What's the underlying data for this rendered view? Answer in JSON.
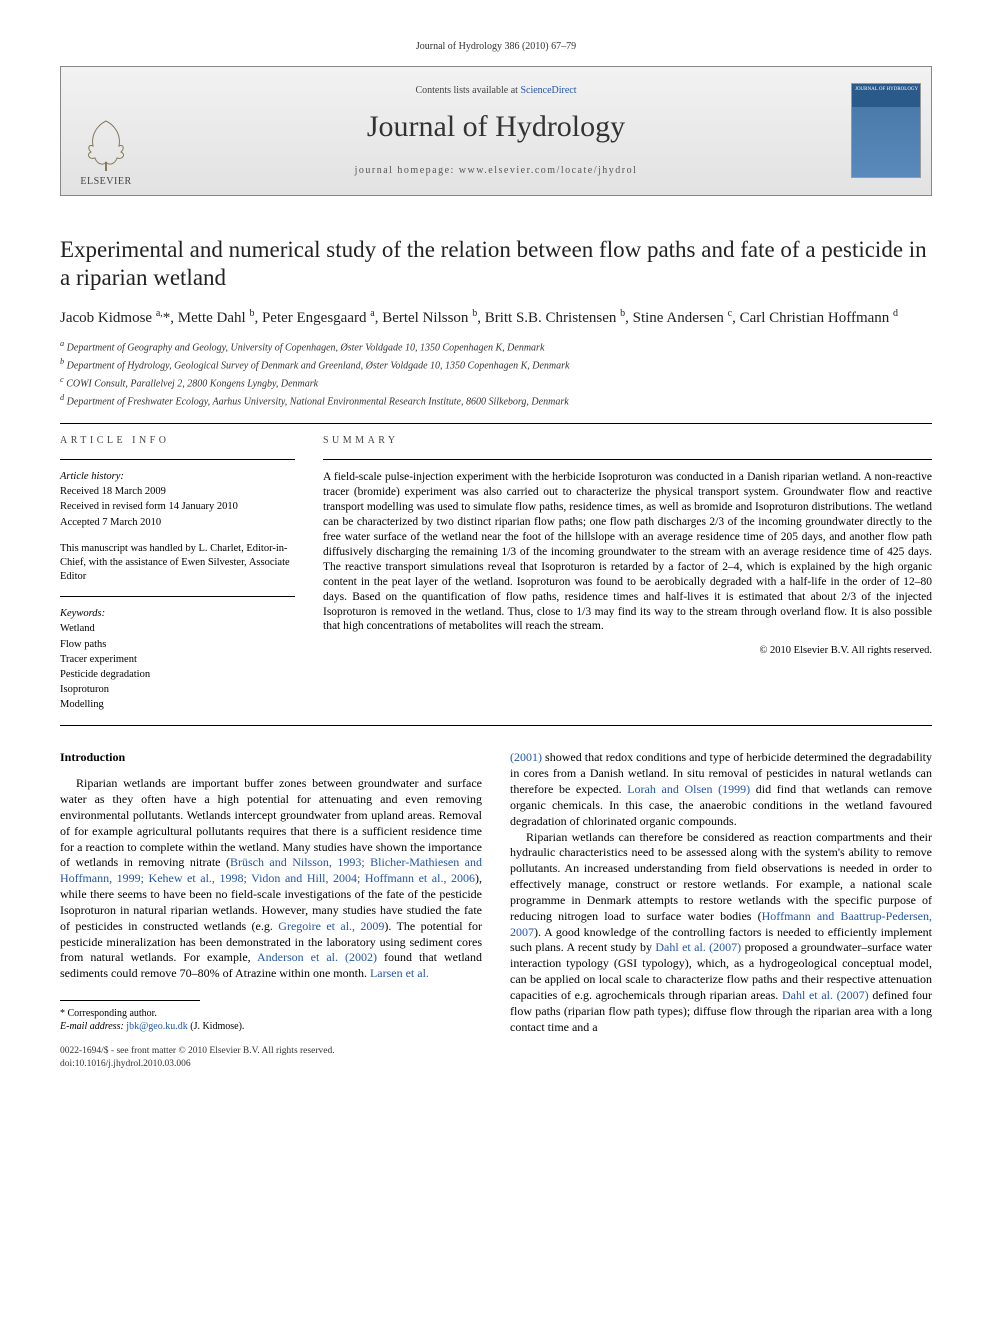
{
  "journal_ref": "Journal of Hydrology 386 (2010) 67–79",
  "banner": {
    "publisher": "ELSEVIER",
    "contents_prefix": "Contents lists available at ",
    "contents_link": "ScienceDirect",
    "journal_name": "Journal of Hydrology",
    "homepage": "journal homepage: www.elsevier.com/locate/jhydrol",
    "cover_title": "JOURNAL OF HYDROLOGY"
  },
  "title": "Experimental and numerical study of the relation between flow paths and fate of a pesticide in a riparian wetland",
  "authors_html": "Jacob Kidmose <sup>a,</sup>*, Mette Dahl <sup>b</sup>, Peter Engesgaard <sup>a</sup>, Bertel Nilsson <sup>b</sup>, Britt S.B. Christensen <sup>b</sup>, Stine Andersen <sup>c</sup>, Carl Christian Hoffmann <sup>d</sup>",
  "affiliations": [
    "a Department of Geography and Geology, University of Copenhagen, Øster Voldgade 10, 1350 Copenhagen K, Denmark",
    "b Department of Hydrology, Geological Survey of Denmark and Greenland, Øster Voldgade 10, 1350 Copenhagen K, Denmark",
    "c COWI Consult, Parallelvej 2, 2800 Kongens Lyngby, Denmark",
    "d Department of Freshwater Ecology, Aarhus University, National Environmental Research Institute, 8600 Silkeborg, Denmark"
  ],
  "meta": {
    "info_heading": "ARTICLE INFO",
    "history_label": "Article history:",
    "history": [
      "Received 18 March 2009",
      "Received in revised form 14 January 2010",
      "Accepted 7 March 2010"
    ],
    "editor_note": "This manuscript was handled by L. Charlet, Editor-in-Chief, with the assistance of Ewen Silvester, Associate Editor",
    "keywords_label": "Keywords:",
    "keywords": [
      "Wetland",
      "Flow paths",
      "Tracer experiment",
      "Pesticide degradation",
      "Isoproturon",
      "Modelling"
    ]
  },
  "summary": {
    "heading": "SUMMARY",
    "text": "A field-scale pulse-injection experiment with the herbicide Isoproturon was conducted in a Danish riparian wetland. A non-reactive tracer (bromide) experiment was also carried out to characterize the physical transport system. Groundwater flow and reactive transport modelling was used to simulate flow paths, residence times, as well as bromide and Isoproturon distributions. The wetland can be characterized by two distinct riparian flow paths; one flow path discharges 2/3 of the incoming groundwater directly to the free water surface of the wetland near the foot of the hillslope with an average residence time of 205 days, and another flow path diffusively discharging the remaining 1/3 of the incoming groundwater to the stream with an average residence time of 425 days. The reactive transport simulations reveal that Isoproturon is retarded by a factor of 2–4, which is explained by the high organic content in the peat layer of the wetland. Isoproturon was found to be aerobically degraded with a half-life in the order of 12–80 days. Based on the quantification of flow paths, residence times and half-lives it is estimated that about 2/3 of the injected Isoproturon is removed in the wetland. Thus, close to 1/3 may find its way to the stream through overland flow. It is also possible that high concentrations of metabolites will reach the stream.",
    "copyright": "© 2010 Elsevier B.V. All rights reserved."
  },
  "body": {
    "intro_heading": "Introduction",
    "left_para1_a": "Riparian wetlands are important buffer zones between groundwater and surface water as they often have a high potential for attenuating and even removing environmental pollutants. Wetlands intercept groundwater from upland areas. Removal of for example agricultural pollutants requires that there is a sufficient residence time for a reaction to complete within the wetland. Many studies have shown the importance of wetlands in removing nitrate (",
    "left_cite1": "Brüsch and Nilsson, 1993; Blicher-Mathiesen and Hoffmann, 1999; Kehew et al., 1998; Vidon and Hill, 2004; Hoffmann et al., 2006",
    "left_para1_b": "), while there seems to have been no field-scale investigations of the fate of the pesticide Isoproturon in natural riparian wetlands. However, many studies have studied the fate of pesticides in constructed wetlands (e.g. ",
    "left_cite2": "Gregoire et al., 2009",
    "left_para1_c": "). The potential for pesticide mineralization has been demonstrated in the laboratory using sediment cores from natural wetlands. For example, ",
    "left_cite3": "Anderson et al. (2002)",
    "left_para1_d": " found that wetland sediments could remove 70–80% of Atrazine within one month. ",
    "left_cite4": "Larsen et al.",
    "right_cite1": "(2001)",
    "right_para1_a": " showed that redox conditions and type of herbicide determined the degradability in cores from a Danish wetland. In situ removal of pesticides in natural wetlands can therefore be expected. ",
    "right_cite2": "Lorah and Olsen (1999)",
    "right_para1_b": " did find that wetlands can remove organic chemicals. In this case, the anaerobic conditions in the wetland favoured degradation of chlorinated organic compounds.",
    "right_para2_a": "Riparian wetlands can therefore be considered as reaction compartments and their hydraulic characteristics need to be assessed along with the system's ability to remove pollutants. An increased understanding from field observations is needed in order to effectively manage, construct or restore wetlands. For example, a national scale programme in Denmark attempts to restore wetlands with the specific purpose of reducing nitrogen load to surface water bodies (",
    "right_cite3": "Hoffmann and Baattrup-Pedersen, 2007",
    "right_para2_b": "). A good knowledge of the controlling factors is needed to efficiently implement such plans. A recent study by ",
    "right_cite4": "Dahl et al. (2007)",
    "right_para2_c": " proposed a groundwater–surface water interaction typology (GSI typology), which, as a hydrogeological conceptual model, can be applied on local scale to characterize flow paths and their respective attenuation capacities of e.g. agrochemicals through riparian areas. ",
    "right_cite5": "Dahl et al. (2007)",
    "right_para2_d": " defined four flow paths (riparian flow path types); diffuse flow through the riparian area with a long contact time and a"
  },
  "footnote": {
    "corr": "* Corresponding author.",
    "email_label": "E-mail address: ",
    "email": "jbk@geo.ku.dk",
    "email_who": " (J. Kidmose).",
    "doi_line": "0022-1694/$ - see front matter © 2010 Elsevier B.V. All rights reserved.",
    "doi": "doi:10.1016/j.jhydrol.2010.03.006"
  },
  "colors": {
    "link": "#2255aa",
    "text": "#000000",
    "banner_bg_top": "#f2f2f2",
    "banner_bg_bottom": "#e2e2e2",
    "cover_blue": "#2a5a8a"
  }
}
